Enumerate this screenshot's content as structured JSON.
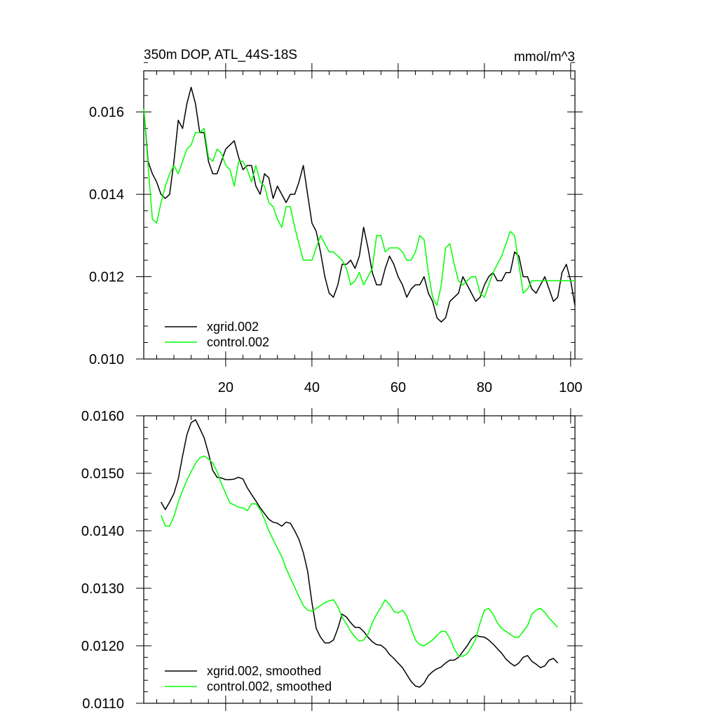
{
  "chart_data": [
    {
      "type": "line",
      "title": "350m DOP, ATL_44S-18S",
      "units": "mmol/m^3",
      "xlim": [
        1,
        101
      ],
      "ylim": [
        0.01,
        0.017
      ],
      "x_ticks": [
        20,
        40,
        60,
        80,
        100
      ],
      "x_tick_labels": [
        "20",
        "40",
        "60",
        "80",
        "100"
      ],
      "y_ticks": [
        0.01,
        0.012,
        0.014,
        0.016
      ],
      "y_tick_labels": [
        "0.010",
        "0.012",
        "0.014",
        "0.016"
      ],
      "legend_position": "bottom-left",
      "series": [
        {
          "name": "xgrid.002",
          "color": "#000000",
          "x": [
            1,
            2,
            3,
            4,
            5,
            6,
            7,
            8,
            9,
            10,
            11,
            12,
            13,
            14,
            15,
            16,
            17,
            18,
            19,
            20,
            21,
            22,
            23,
            24,
            25,
            26,
            27,
            28,
            29,
            30,
            31,
            32,
            33,
            34,
            35,
            36,
            37,
            38,
            39,
            40,
            41,
            42,
            43,
            44,
            45,
            46,
            47,
            48,
            49,
            50,
            51,
            52,
            53,
            54,
            55,
            56,
            57,
            58,
            59,
            60,
            61,
            62,
            63,
            64,
            65,
            66,
            67,
            68,
            69,
            70,
            71,
            72,
            73,
            74,
            75,
            76,
            77,
            78,
            79,
            80,
            81,
            82,
            83,
            84,
            85,
            86,
            87,
            88,
            89,
            90,
            91,
            92,
            93,
            94,
            95,
            96,
            97,
            98,
            99,
            100,
            101
          ],
          "values": [
            0.0161,
            0.0148,
            0.0145,
            0.0143,
            0.014,
            0.0139,
            0.014,
            0.0148,
            0.0158,
            0.0156,
            0.0162,
            0.0166,
            0.0162,
            0.0155,
            0.0155,
            0.0148,
            0.0145,
            0.0145,
            0.0148,
            0.0151,
            0.0152,
            0.0153,
            0.0149,
            0.0146,
            0.0147,
            0.0147,
            0.0142,
            0.014,
            0.0145,
            0.0144,
            0.0139,
            0.0142,
            0.014,
            0.0138,
            0.014,
            0.014,
            0.0143,
            0.0147,
            0.014,
            0.0133,
            0.0131,
            0.0126,
            0.012,
            0.0116,
            0.0115,
            0.0118,
            0.0123,
            0.0123,
            0.0124,
            0.0122,
            0.0125,
            0.0132,
            0.0127,
            0.0121,
            0.0118,
            0.0118,
            0.0122,
            0.0125,
            0.0123,
            0.012,
            0.0118,
            0.0115,
            0.0117,
            0.0118,
            0.0118,
            0.012,
            0.0116,
            0.0114,
            0.011,
            0.0109,
            0.011,
            0.0114,
            0.0115,
            0.0116,
            0.012,
            0.0118,
            0.0116,
            0.0114,
            0.0115,
            0.0118,
            0.012,
            0.0121,
            0.0119,
            0.0119,
            0.0121,
            0.0121,
            0.0126,
            0.0125,
            0.012,
            0.012,
            0.0117,
            0.0116,
            0.0118,
            0.012,
            0.0117,
            0.0114,
            0.0115,
            0.0121,
            0.0123,
            0.0119,
            0.0113
          ]
        },
        {
          "name": "control.002",
          "color": "#00ff00",
          "x": [
            1,
            2,
            3,
            4,
            5,
            6,
            7,
            8,
            9,
            10,
            11,
            12,
            13,
            14,
            15,
            16,
            17,
            18,
            19,
            20,
            21,
            22,
            23,
            24,
            25,
            26,
            27,
            28,
            29,
            30,
            31,
            32,
            33,
            34,
            35,
            36,
            37,
            38,
            39,
            40,
            41,
            42,
            43,
            44,
            45,
            46,
            47,
            48,
            49,
            50,
            51,
            52,
            53,
            54,
            55,
            56,
            57,
            58,
            59,
            60,
            61,
            62,
            63,
            64,
            65,
            66,
            67,
            68,
            69,
            70,
            71,
            72,
            73,
            74,
            75,
            76,
            77,
            78,
            79,
            80,
            81,
            82,
            83,
            84,
            85,
            86,
            87,
            88,
            89,
            90,
            91,
            92,
            93,
            94,
            95,
            96,
            97,
            98,
            99,
            100,
            101
          ],
          "values": [
            0.0161,
            0.0147,
            0.0134,
            0.0133,
            0.0138,
            0.0142,
            0.0145,
            0.0147,
            0.0145,
            0.0148,
            0.0151,
            0.0152,
            0.0155,
            0.0155,
            0.0156,
            0.0149,
            0.0148,
            0.0151,
            0.015,
            0.0147,
            0.0146,
            0.0142,
            0.0148,
            0.0148,
            0.0146,
            0.0143,
            0.0147,
            0.0143,
            0.0142,
            0.0138,
            0.0137,
            0.0134,
            0.0132,
            0.0137,
            0.0137,
            0.0132,
            0.0128,
            0.0124,
            0.0124,
            0.0124,
            0.0127,
            0.013,
            0.0128,
            0.0126,
            0.0126,
            0.0125,
            0.0124,
            0.0122,
            0.0118,
            0.0119,
            0.0121,
            0.0118,
            0.012,
            0.0122,
            0.013,
            0.013,
            0.0126,
            0.0127,
            0.0127,
            0.0127,
            0.0126,
            0.0124,
            0.0124,
            0.0126,
            0.013,
            0.0129,
            0.0121,
            0.0115,
            0.0113,
            0.0118,
            0.0127,
            0.0128,
            0.0123,
            0.0119,
            0.0118,
            0.0119,
            0.012,
            0.012,
            0.0116,
            0.0115,
            0.0118,
            0.0121,
            0.0123,
            0.0125,
            0.0128,
            0.0131,
            0.013,
            0.0123,
            0.0116,
            0.0117,
            0.0119,
            0.0119,
            0.0119,
            0.0119,
            0.0119,
            0.0119,
            0.0119,
            0.0119,
            0.0119,
            0.0119,
            0.0119
          ]
        }
      ]
    },
    {
      "type": "line",
      "xlim": [
        1,
        101
      ],
      "ylim": [
        0.011,
        0.016
      ],
      "x_ticks": [
        20,
        40,
        60,
        80,
        100
      ],
      "y_ticks": [
        0.011,
        0.012,
        0.013,
        0.014,
        0.015,
        0.016
      ],
      "y_tick_labels": [
        "0.0110",
        "0.0120",
        "0.0130",
        "0.0140",
        "0.0150",
        "0.0160"
      ],
      "legend_position": "bottom-left",
      "series": [
        {
          "name": "xgrid.002, smoothed",
          "color": "#000000",
          "x": [
            5,
            6,
            7,
            8,
            9,
            10,
            11,
            12,
            13,
            14,
            15,
            16,
            17,
            18,
            19,
            20,
            21,
            22,
            23,
            24,
            25,
            26,
            27,
            28,
            29,
            30,
            31,
            32,
            33,
            34,
            35,
            36,
            37,
            38,
            39,
            40,
            41,
            42,
            43,
            44,
            45,
            46,
            47,
            48,
            49,
            50,
            51,
            52,
            53,
            54,
            55,
            56,
            57,
            58,
            59,
            60,
            61,
            62,
            63,
            64,
            65,
            66,
            67,
            68,
            69,
            70,
            71,
            72,
            73,
            74,
            75,
            76,
            77,
            78,
            79,
            80,
            81,
            82,
            83,
            84,
            85,
            86,
            87,
            88,
            89,
            90,
            91,
            92,
            93,
            94,
            95,
            96,
            97
          ],
          "values": [
            0.0145,
            0.01437,
            0.0145,
            0.01465,
            0.0149,
            0.0153,
            0.01567,
            0.01588,
            0.01593,
            0.01578,
            0.01562,
            0.01535,
            0.01505,
            0.01493,
            0.01492,
            0.01489,
            0.01489,
            0.0149,
            0.01493,
            0.0149,
            0.01475,
            0.01463,
            0.01452,
            0.0144,
            0.0143,
            0.0142,
            0.01415,
            0.01413,
            0.01408,
            0.01415,
            0.01413,
            0.014,
            0.01385,
            0.01362,
            0.0133,
            0.01275,
            0.0123,
            0.01215,
            0.01205,
            0.01205,
            0.0121,
            0.0123,
            0.01255,
            0.0125,
            0.0124,
            0.01232,
            0.01232,
            0.01225,
            0.01215,
            0.01207,
            0.01202,
            0.01201,
            0.01195,
            0.01185,
            0.01178,
            0.0117,
            0.01162,
            0.0115,
            0.01138,
            0.0113,
            0.01128,
            0.01135,
            0.01148,
            0.01155,
            0.0116,
            0.01163,
            0.0117,
            0.01175,
            0.01175,
            0.0118,
            0.0119,
            0.012,
            0.01212,
            0.01218,
            0.01216,
            0.01215,
            0.0121,
            0.01203,
            0.01195,
            0.01187,
            0.01177,
            0.0117,
            0.01165,
            0.0117,
            0.0118,
            0.01183,
            0.01173,
            0.01168,
            0.01162,
            0.01165,
            0.01175,
            0.01178,
            0.0117
          ]
        },
        {
          "name": "control.002, smoothed",
          "color": "#00ff00",
          "x": [
            5,
            6,
            7,
            8,
            9,
            10,
            11,
            12,
            13,
            14,
            15,
            16,
            17,
            18,
            19,
            20,
            21,
            22,
            23,
            24,
            25,
            26,
            27,
            28,
            29,
            30,
            31,
            32,
            33,
            34,
            35,
            36,
            37,
            38,
            39,
            40,
            41,
            42,
            43,
            44,
            45,
            46,
            47,
            48,
            49,
            50,
            51,
            52,
            53,
            54,
            55,
            56,
            57,
            58,
            59,
            60,
            61,
            62,
            63,
            64,
            65,
            66,
            67,
            68,
            69,
            70,
            71,
            72,
            73,
            74,
            75,
            76,
            77,
            78,
            79,
            80,
            81,
            82,
            83,
            84,
            85,
            86,
            87,
            88,
            89,
            90,
            91,
            92,
            93,
            94,
            95,
            96,
            97
          ],
          "values": [
            0.01427,
            0.01408,
            0.01408,
            0.01425,
            0.0145,
            0.0147,
            0.01488,
            0.01503,
            0.01517,
            0.01527,
            0.0153,
            0.01525,
            0.01518,
            0.01503,
            0.01482,
            0.01465,
            0.01448,
            0.01445,
            0.01441,
            0.0144,
            0.01435,
            0.01447,
            0.01447,
            0.01437,
            0.0142,
            0.014,
            0.01385,
            0.0137,
            0.01355,
            0.01335,
            0.01318,
            0.01302,
            0.01285,
            0.0127,
            0.01262,
            0.0126,
            0.01265,
            0.0127,
            0.01275,
            0.01278,
            0.0128,
            0.01268,
            0.0125,
            0.01238,
            0.01225,
            0.01215,
            0.01208,
            0.0121,
            0.0122,
            0.0124,
            0.01255,
            0.01267,
            0.0128,
            0.01272,
            0.0126,
            0.01257,
            0.01262,
            0.01252,
            0.0123,
            0.0121,
            0.01202,
            0.012,
            0.01205,
            0.0121,
            0.01218,
            0.01225,
            0.01225,
            0.01213,
            0.01195,
            0.01182,
            0.01182,
            0.01186,
            0.01198,
            0.01212,
            0.0124,
            0.01262,
            0.01265,
            0.01255,
            0.0124,
            0.0123,
            0.01225,
            0.0122,
            0.01215,
            0.01215,
            0.01225,
            0.01235,
            0.01255,
            0.01262,
            0.01265,
            0.01258,
            0.01248,
            0.0124,
            0.01232
          ]
        }
      ]
    }
  ]
}
